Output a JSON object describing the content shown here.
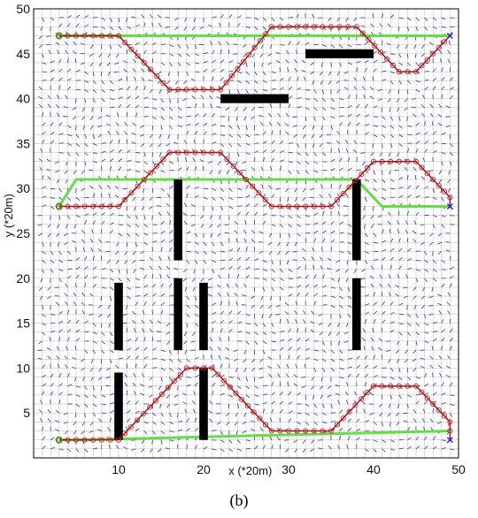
{
  "caption": "(b)",
  "chart_data": {
    "type": "line",
    "title": "",
    "xlabel": "x (*20m)",
    "ylabel": "y (*20m)",
    "xlim": [
      0,
      50
    ],
    "ylim": [
      0,
      50
    ],
    "xticks": [
      10,
      20,
      30,
      40,
      50
    ],
    "yticks": [
      5,
      10,
      15,
      20,
      25,
      30,
      35,
      40,
      45,
      50
    ],
    "grid": true,
    "background": "vector field (short blue arrows at every integer grid point)",
    "colors": {
      "planned_path": "#8b1a1a",
      "waypoint_marker": "#cc2222",
      "green_path": "#66dd44",
      "obstacle": "#000000",
      "vector_field": "#3333aa",
      "start_marker": "#22aa22",
      "goal_marker": "#2222cc"
    },
    "series": [
      {
        "points": [
          [
            3,
            47
          ],
          [
            10,
            47
          ],
          [
            16,
            41
          ],
          [
            22,
            41
          ],
          [
            28,
            48
          ],
          [
            38,
            48
          ],
          [
            43,
            43
          ],
          [
            45,
            43
          ],
          [
            49,
            47
          ]
        ],
        "green": [
          [
            3,
            47
          ],
          [
            49,
            47
          ]
        ],
        "start": [
          3,
          47
        ],
        "goal": [
          49,
          47
        ]
      },
      {
        "points": [
          [
            3,
            28
          ],
          [
            10,
            28
          ],
          [
            16,
            34
          ],
          [
            22,
            34
          ],
          [
            28,
            28
          ],
          [
            35,
            28
          ],
          [
            40,
            33
          ],
          [
            45,
            33
          ],
          [
            49,
            29
          ],
          [
            49,
            28
          ]
        ],
        "green": [
          [
            3,
            28
          ],
          [
            5,
            31
          ],
          [
            38,
            31
          ],
          [
            41,
            28
          ],
          [
            49,
            28
          ]
        ],
        "start": [
          3,
          28
        ],
        "goal": [
          49,
          28
        ]
      },
      {
        "points": [
          [
            3,
            2
          ],
          [
            10,
            2
          ],
          [
            18,
            10
          ],
          [
            21,
            10
          ],
          [
            28,
            3
          ],
          [
            35,
            3
          ],
          [
            40,
            8
          ],
          [
            45,
            8
          ],
          [
            49,
            4
          ],
          [
            49,
            2
          ]
        ],
        "green": [
          [
            3,
            2
          ],
          [
            5,
            2
          ],
          [
            49,
            3
          ]
        ],
        "start": [
          3,
          2
        ],
        "goal": [
          49,
          2
        ]
      }
    ],
    "obstacles": [
      {
        "x": [
          32,
          40
        ],
        "y": [
          44.5,
          45.5
        ]
      },
      {
        "x": [
          22,
          30
        ],
        "y": [
          39.5,
          40.5
        ]
      },
      {
        "x": [
          16.5,
          17.5
        ],
        "y": [
          22,
          31
        ]
      },
      {
        "x": [
          37.5,
          38.5
        ],
        "y": [
          22,
          31
        ]
      },
      {
        "x": [
          9.5,
          10.5
        ],
        "y": [
          12,
          19.5
        ]
      },
      {
        "x": [
          16.5,
          17.5
        ],
        "y": [
          12,
          20
        ]
      },
      {
        "x": [
          19.5,
          20.5
        ],
        "y": [
          12,
          19.5
        ]
      },
      {
        "x": [
          37.5,
          38.5
        ],
        "y": [
          12,
          20
        ]
      },
      {
        "x": [
          9.5,
          10.5
        ],
        "y": [
          2,
          9.5
        ]
      },
      {
        "x": [
          19.5,
          20.5
        ],
        "y": [
          2,
          10
        ]
      }
    ]
  }
}
